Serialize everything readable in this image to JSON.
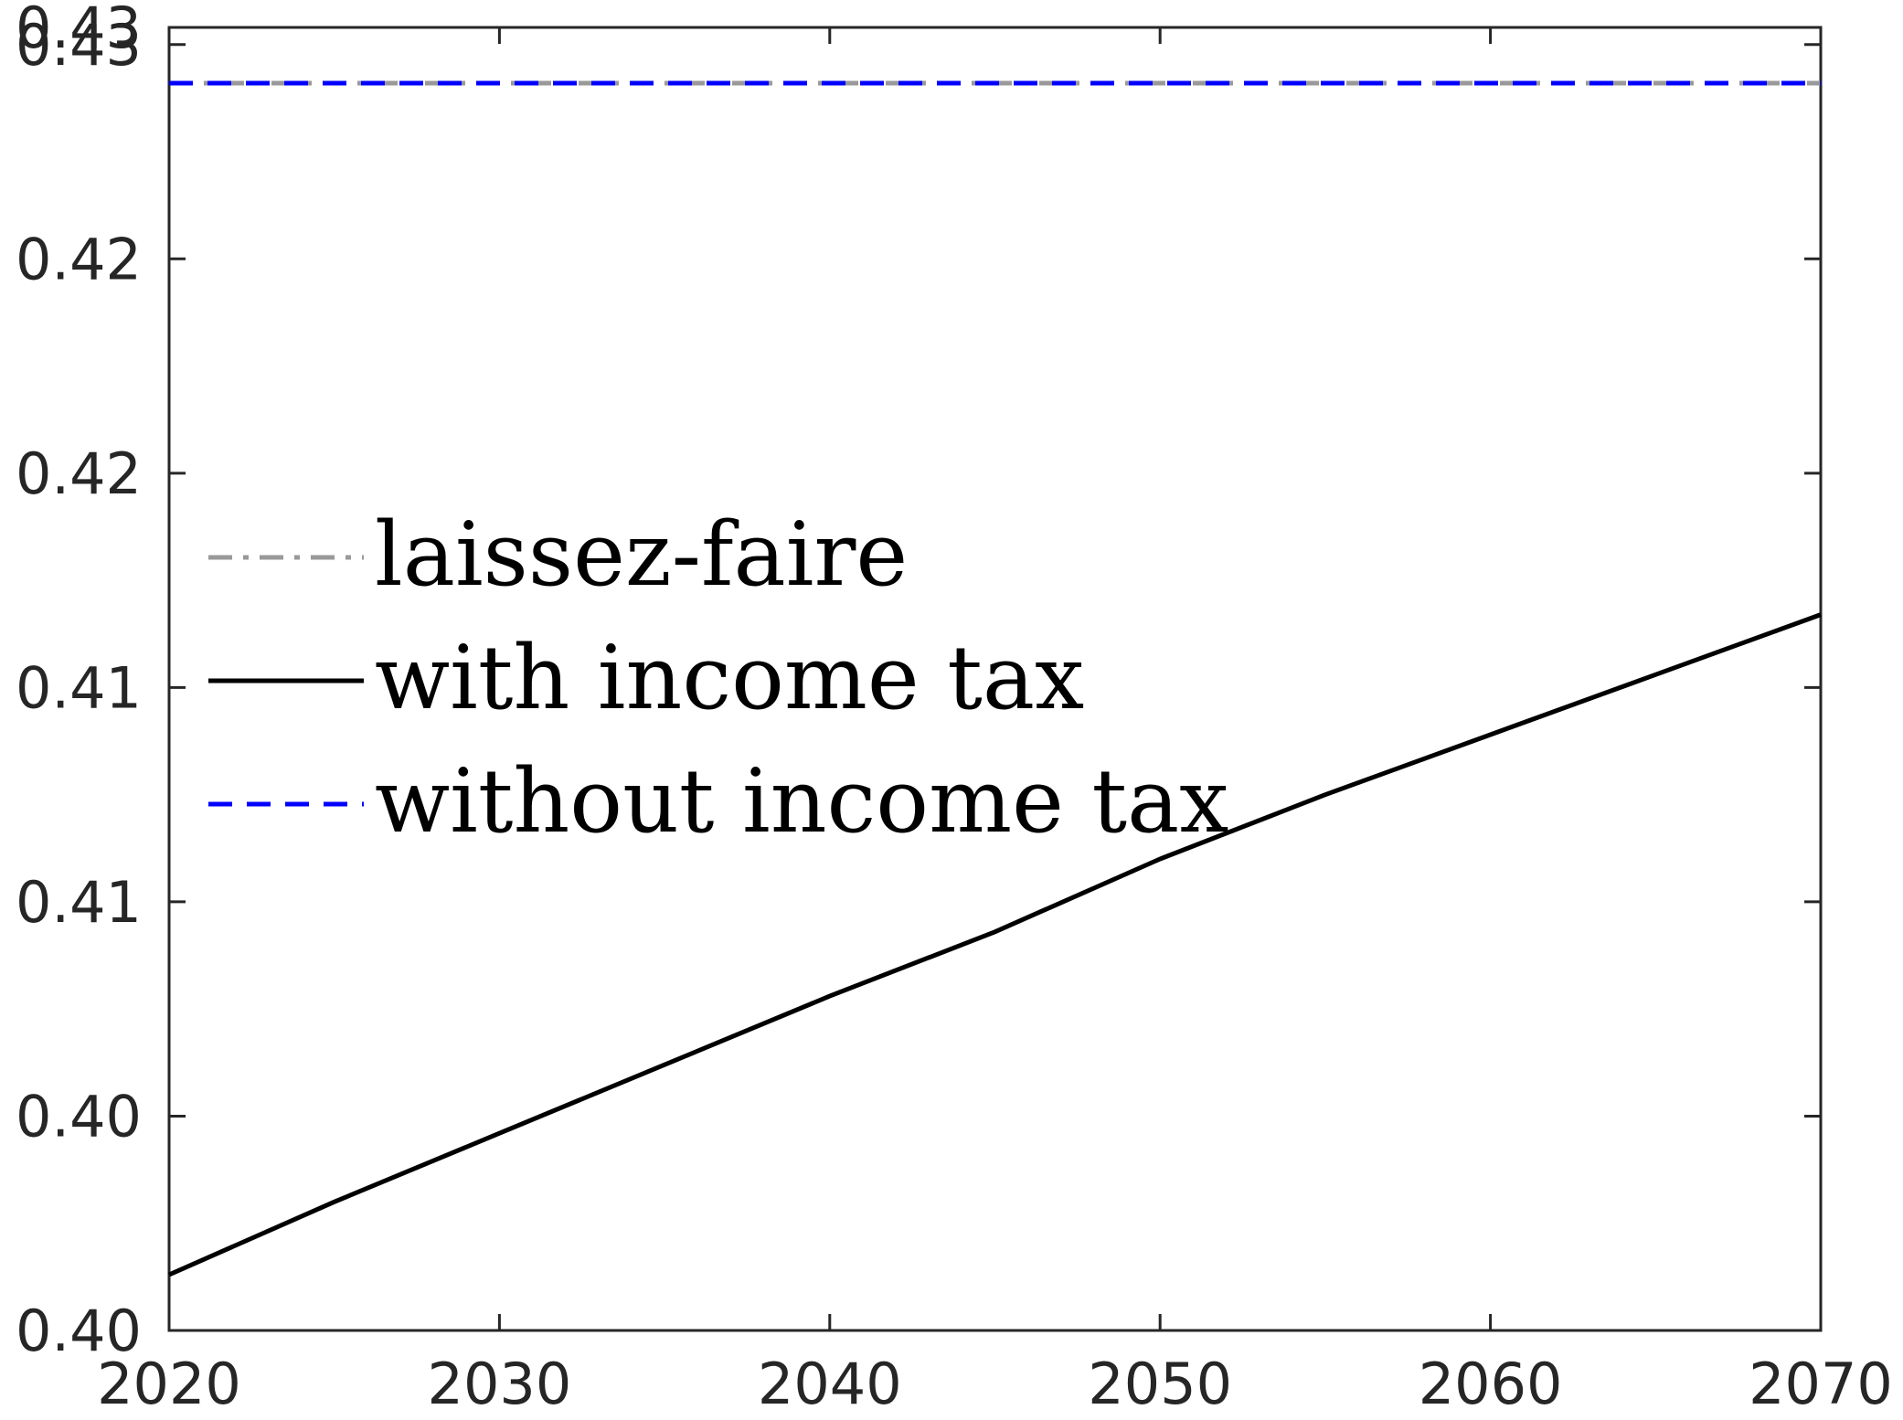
{
  "chart_data": {
    "type": "line",
    "title": "",
    "xlabel": "",
    "ylabel": "",
    "xlim": [
      2020,
      2070
    ],
    "ylim": [
      0.4,
      0.4304
    ],
    "xticks": [
      2020,
      2030,
      2040,
      2050,
      2060,
      2070
    ],
    "xtick_labels": [
      "2020",
      "2030",
      "2040",
      "2050",
      "2060",
      "2070"
    ],
    "yticks": [
      0.4,
      0.405,
      0.41,
      0.415,
      0.42,
      0.425,
      0.43
    ],
    "ytick_labels": [
      "0.40",
      "0.40",
      "0.41",
      "0.41",
      "0.42",
      "0.42",
      "0.43",
      "0.43"
    ],
    "ytick_values": [
      0.4,
      0.405,
      0.41,
      0.415,
      0.42,
      0.425,
      0.43,
      0.4304
    ],
    "grid": false,
    "legend_position": "left",
    "series": [
      {
        "name": "laissez-faire",
        "color": "#999999",
        "style": "dash-dot",
        "x": [
          2020,
          2025,
          2030,
          2035,
          2040,
          2045,
          2050,
          2055,
          2060,
          2065,
          2070
        ],
        "y": [
          0.4291,
          0.4291,
          0.4291,
          0.4291,
          0.4291,
          0.4291,
          0.4291,
          0.4291,
          0.4291,
          0.4291,
          0.4291
        ]
      },
      {
        "name": "with income tax",
        "color": "#000000",
        "style": "solid",
        "x": [
          2020,
          2025,
          2030,
          2035,
          2040,
          2045,
          2050,
          2055,
          2060,
          2065,
          2070
        ],
        "y": [
          0.4013,
          0.403,
          0.4046,
          0.4062,
          0.4078,
          0.4093,
          0.411,
          0.4125,
          0.4139,
          0.4153,
          0.4167
        ]
      },
      {
        "name": "without income tax",
        "color": "#0000ff",
        "style": "dashed",
        "x": [
          2020,
          2025,
          2030,
          2035,
          2040,
          2045,
          2050,
          2055,
          2060,
          2065,
          2070
        ],
        "y": [
          0.4291,
          0.4291,
          0.4291,
          0.4291,
          0.4291,
          0.4291,
          0.4291,
          0.4291,
          0.4291,
          0.4291,
          0.4291
        ]
      }
    ]
  }
}
